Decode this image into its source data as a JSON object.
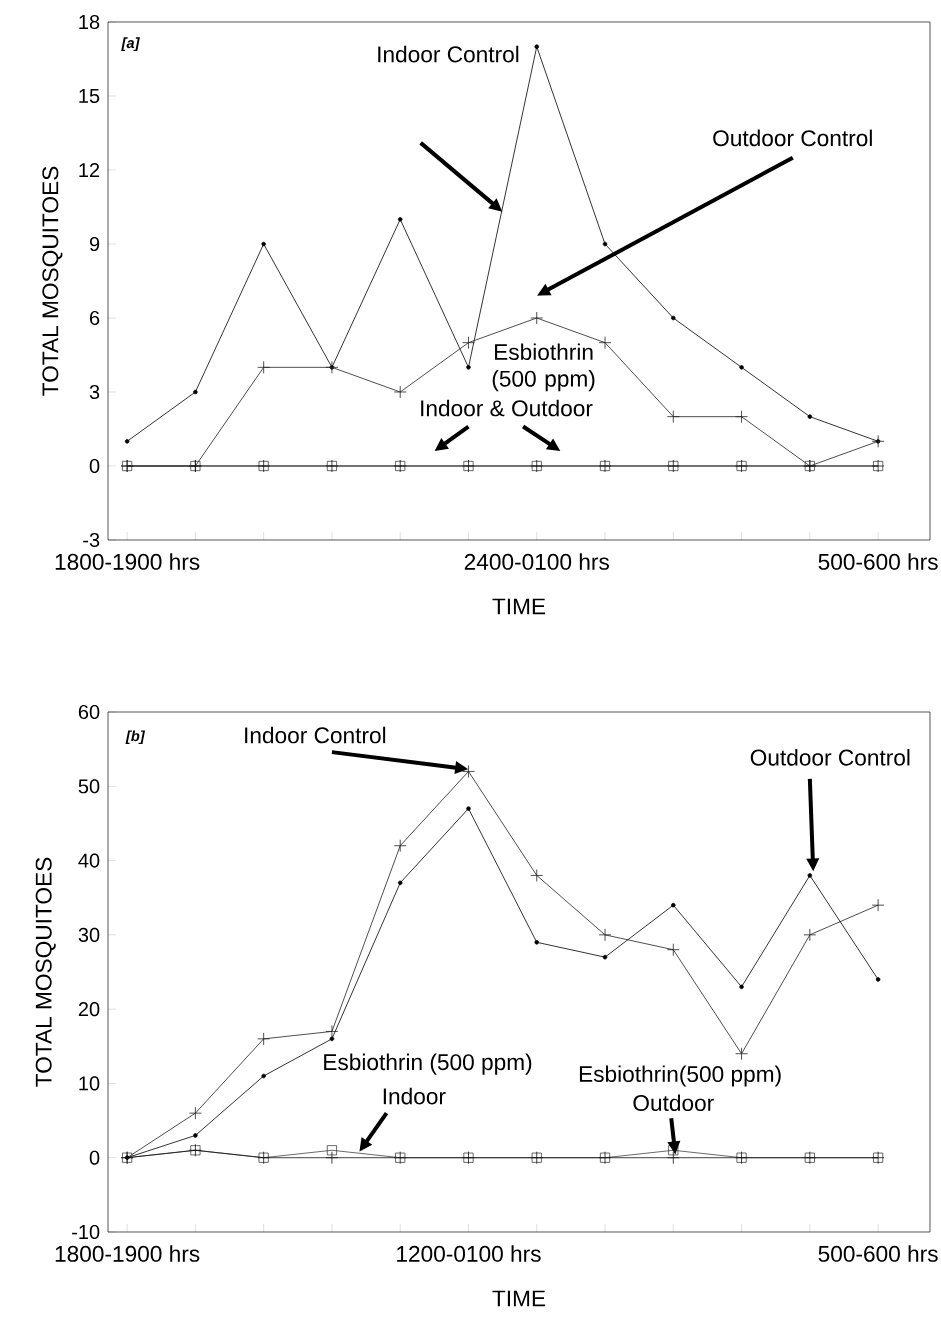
{
  "chart_data": [
    {
      "type": "line",
      "xlabel": "TIME",
      "ylabel": "TOTAL MOSQUITOES",
      "categories": [
        "1800-1900 hrs",
        null,
        null,
        null,
        null,
        null,
        "2400-0100 hrs",
        null,
        null,
        null,
        null,
        "500-600 hrs"
      ],
      "ylim": [
        -3,
        18
      ],
      "yticks": [
        -3,
        0,
        3,
        6,
        9,
        12,
        15,
        18
      ],
      "grid": false,
      "line_style": "solid",
      "series": [
        {
          "color": "#000000",
          "marker": "circle",
          "values": [
            1,
            3,
            9,
            4,
            10,
            4,
            17,
            9,
            6,
            4,
            2,
            1
          ]
        },
        {
          "color": "#222222",
          "marker": "cross",
          "values": [
            0,
            0,
            4,
            4,
            3,
            5,
            6,
            5,
            2,
            2,
            0,
            1
          ]
        },
        {
          "color": "#444444",
          "marker": "square",
          "values": [
            0,
            0,
            0,
            0,
            0,
            0,
            0,
            0,
            0,
            0,
            0,
            0
          ]
        },
        {
          "color": "#111111",
          "marker": "cross",
          "values": [
            0,
            0,
            0,
            0,
            0,
            0,
            0,
            0,
            0,
            0,
            0,
            0
          ]
        }
      ],
      "annotations": [
        "[a]",
        "Indoor Control",
        "Outdoor Control",
        "Esbiothrin (500 ppm)",
        "Indoor & Outdoor"
      ]
    },
    {
      "type": "line",
      "xlabel": "TIME",
      "ylabel": "TOTAL MOSQUITOES",
      "categories": [
        "1800-1900 hrs",
        null,
        null,
        null,
        null,
        "1200-0100 hrs",
        null,
        null,
        null,
        null,
        null,
        "500-600 hrs"
      ],
      "ylim": [
        -10,
        60
      ],
      "yticks": [
        -10,
        0,
        10,
        20,
        30,
        40,
        50,
        60
      ],
      "grid": false,
      "line_style": "solid",
      "series": [
        {
          "color": "#222222",
          "marker": "cross",
          "values": [
            0,
            6,
            16,
            17,
            42,
            52,
            38,
            30,
            28,
            14,
            30,
            34
          ]
        },
        {
          "color": "#000000",
          "marker": "circle",
          "values": [
            0,
            3,
            11,
            16,
            37,
            47,
            29,
            27,
            34,
            23,
            38,
            24
          ]
        },
        {
          "color": "#444444",
          "marker": "square",
          "values": [
            0,
            1,
            0,
            1,
            0,
            0,
            0,
            0,
            1,
            0,
            0,
            0
          ]
        },
        {
          "color": "#111111",
          "marker": "cross",
          "values": [
            0,
            1,
            0,
            0,
            0,
            0,
            0,
            0,
            0,
            0,
            0,
            0
          ]
        }
      ],
      "annotations": [
        "[b]",
        "Indoor Control",
        "Outdoor Control",
        "Esbiothrin (500 ppm)",
        "Indoor",
        "Esbiothrin(500 ppm)",
        "Outdoor"
      ]
    }
  ]
}
